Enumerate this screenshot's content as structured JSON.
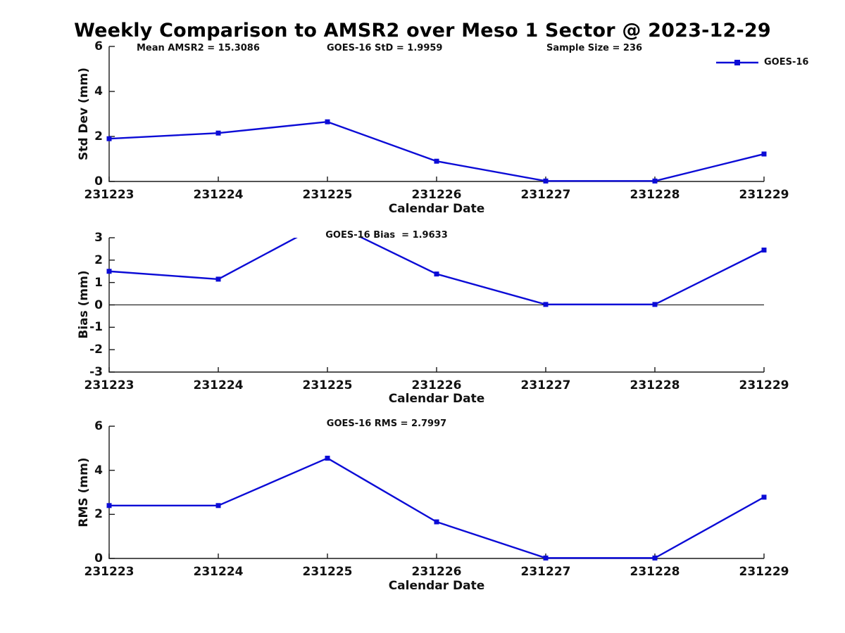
{
  "title": "Weekly Comparison to AMSR2 over Meso 1 Sector @ 2023-12-29",
  "legend": {
    "label": "GOES-16"
  },
  "colors": {
    "line": "#0b0bd6",
    "axis": "#1a1a1a",
    "text": "#111111"
  },
  "annotations": {
    "mean_amsr2": "Mean AMSR2 = 15.3086",
    "goes16_std": "GOES-16 StD = 1.9959",
    "sample_size": "Sample Size = 236"
  },
  "chart_data": [
    {
      "type": "line",
      "title": "",
      "ylabel": "Std Dev (mm)",
      "xlabel": "Calendar Date",
      "categories": [
        "231223",
        "231224",
        "231225",
        "231226",
        "231227",
        "231228",
        "231229"
      ],
      "yticks": [
        6,
        4,
        2,
        0
      ],
      "ylim": [
        0,
        6
      ],
      "grid": false,
      "zero_line": false,
      "legend_position": "top-right-figure",
      "series": [
        {
          "name": "GOES-16",
          "values": [
            1.9,
            2.15,
            2.65,
            0.9,
            0.02,
            0.02,
            1.22
          ]
        }
      ]
    },
    {
      "type": "line",
      "title": "GOES-16 Bias  = 1.9633",
      "ylabel": "Bias (mm)",
      "xlabel": "Calendar Date",
      "categories": [
        "231223",
        "231224",
        "231225",
        "231226",
        "231227",
        "231228",
        "231229"
      ],
      "yticks": [
        3,
        2,
        1,
        0,
        -1,
        -2,
        -3
      ],
      "ylim": [
        -3,
        3
      ],
      "grid": false,
      "zero_line": true,
      "note": "value at 231225 exceeds axis max and is clipped at top",
      "series": [
        {
          "name": "GOES-16",
          "values": [
            1.5,
            1.15,
            3.75,
            1.38,
            0.02,
            0.02,
            2.45
          ]
        }
      ]
    },
    {
      "type": "line",
      "title": "GOES-16 RMS = 2.7997",
      "ylabel": "RMS (mm)",
      "xlabel": "Calendar Date",
      "categories": [
        "231223",
        "231224",
        "231225",
        "231226",
        "231227",
        "231228",
        "231229"
      ],
      "yticks": [
        6,
        4,
        2,
        0
      ],
      "ylim": [
        0,
        6
      ],
      "grid": false,
      "zero_line": false,
      "series": [
        {
          "name": "GOES-16",
          "values": [
            2.4,
            2.4,
            4.55,
            1.66,
            0.02,
            0.02,
            2.78
          ]
        }
      ]
    }
  ]
}
